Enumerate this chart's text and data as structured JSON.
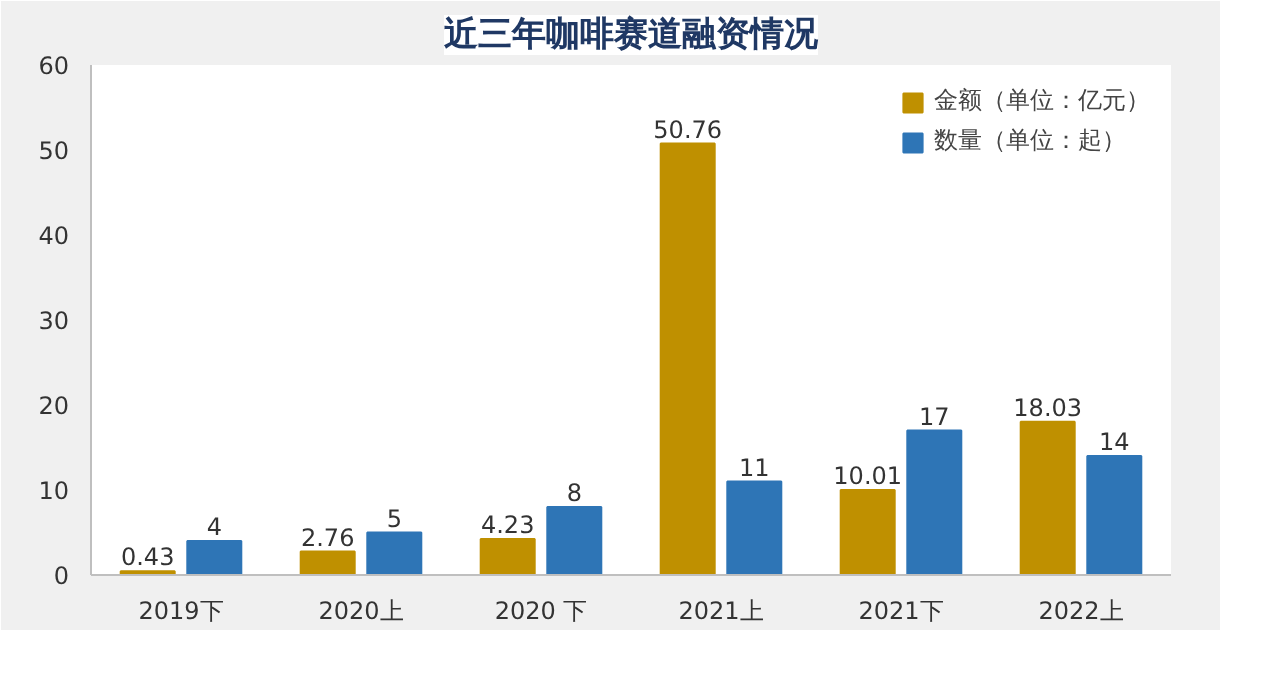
{
  "chart_data": {
    "type": "bar",
    "title": "近三年咖啡赛道融资情况",
    "categories": [
      "2019下",
      "2020上",
      "2020 下",
      "2021上",
      "2021下",
      "2022上"
    ],
    "series": [
      {
        "name": "金额（单位：亿元）",
        "color": "#bf9000",
        "values": [
          0.43,
          2.76,
          4.23,
          50.76,
          10.01,
          18.03
        ]
      },
      {
        "name": "数量（单位：起）",
        "color": "#2e75b6",
        "values": [
          4,
          5,
          8,
          11,
          17,
          14
        ]
      }
    ],
    "ylim": [
      0,
      60
    ],
    "yticks": [
      0,
      10,
      20,
      30,
      40,
      50,
      60
    ],
    "grid": false,
    "legend": "top right",
    "data_labels": true
  }
}
